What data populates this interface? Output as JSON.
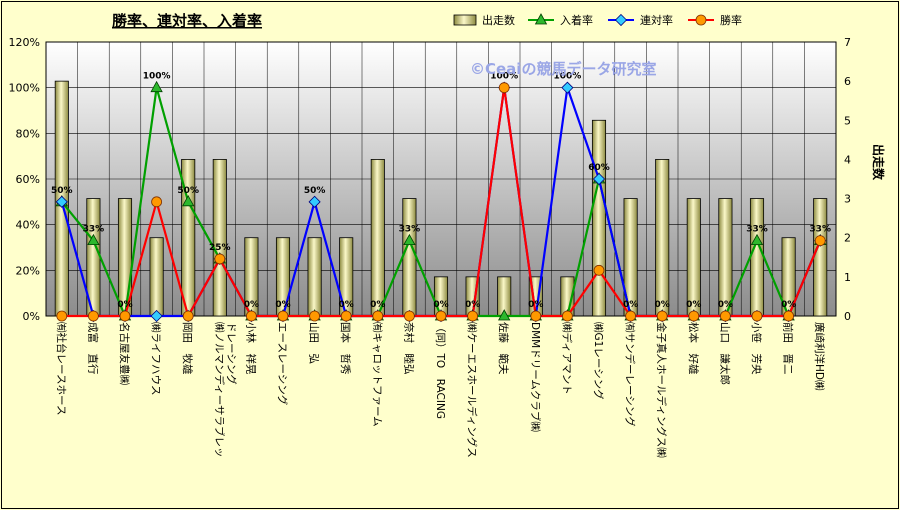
{
  "chart_data": {
    "type": "bar+line",
    "title": "勝率、連対率、入着率",
    "watermark": "©Ceaiの競馬データ研究室",
    "y2label": "出走数",
    "ylim": [
      0,
      120
    ],
    "y_ticks": [
      "0%",
      "20%",
      "40%",
      "60%",
      "80%",
      "100%",
      "120%"
    ],
    "y2lim": [
      0,
      7
    ],
    "y2_ticks": [
      "0",
      "1",
      "2",
      "3",
      "4",
      "5",
      "6",
      "7"
    ],
    "categories": [
      "㈲社台レースホース",
      "成富　直行",
      "名古屋友豊㈱",
      "㈱ライフハウス",
      "岡田　牧雄",
      "㈱ノルマンディーサラブレッドレーシング",
      "小林　祥晃",
      "エースレーシング",
      "山田　弘",
      "国本　哲秀",
      "㈲キャロットファーム",
      "奈村　睦弘",
      "（同）TO　RACING",
      "㈱ケーエスホールディングス",
      "佐藤　範夫",
      "DMMドリームクラブ㈱",
      "㈱ディアマント",
      "㈱G1レーシング",
      "㈲サンデーレーシング",
      "金子真人ホールディングス㈱",
      "松本　好雄",
      "山口　謙太郎",
      "小笹　芳央",
      "前田　晋二",
      "廣崎利洋HD㈱"
    ],
    "series": [
      {
        "name": "出走数",
        "axis": "right",
        "kind": "bar",
        "color": "#e8e4a0",
        "values": [
          6,
          3,
          3,
          2,
          4,
          4,
          2,
          2,
          2,
          2,
          4,
          3,
          1,
          1,
          1,
          1,
          1,
          5,
          3,
          4,
          3,
          3,
          3,
          2,
          3
        ]
      },
      {
        "name": "入着率",
        "axis": "left",
        "kind": "line",
        "color": "#00a000",
        "marker": "triangle",
        "values": [
          50,
          33,
          0,
          100,
          50,
          25,
          0,
          0,
          0,
          0,
          0,
          33,
          0,
          0,
          0,
          0,
          0,
          60,
          0,
          0,
          0,
          0,
          33,
          0,
          33
        ]
      },
      {
        "name": "連対率",
        "axis": "left",
        "kind": "line",
        "color": "#0000ff",
        "marker": "diamond",
        "values": [
          50,
          0,
          0,
          0,
          0,
          25,
          0,
          0,
          50,
          0,
          0,
          0,
          0,
          0,
          100,
          0,
          100,
          60,
          0,
          0,
          0,
          0,
          0,
          0,
          33
        ]
      },
      {
        "name": "勝率",
        "axis": "left",
        "kind": "line",
        "color": "#ff0000",
        "marker": "circle",
        "values": [
          0,
          0,
          0,
          50,
          0,
          25,
          0,
          0,
          0,
          0,
          0,
          0,
          0,
          0,
          100,
          0,
          0,
          20,
          0,
          0,
          0,
          0,
          0,
          0,
          33
        ]
      }
    ],
    "data_labels": [
      "50%",
      "33%",
      "0%",
      "100%",
      "50%",
      "25%",
      "0%",
      "0%",
      "50%",
      "0%",
      "0%",
      "33%",
      "0%",
      "0%",
      "100%",
      "0%",
      "100%",
      "60%",
      "0%",
      "0%",
      "0%",
      "0%",
      "33%",
      "0%",
      "33%"
    ],
    "legend_position": "top"
  }
}
